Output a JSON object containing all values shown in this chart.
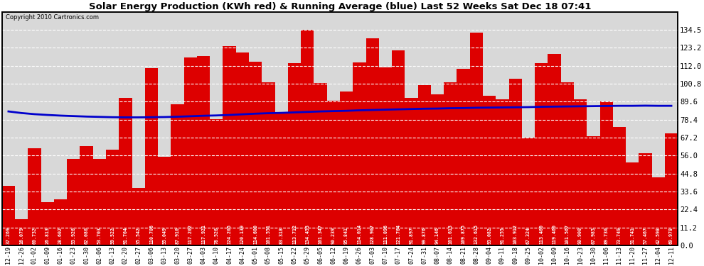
{
  "title": "Solar Energy Production (KWh red) & Running Average (blue) Last 52 Weeks Sat Dec 18 07:41",
  "copyright": "Copyright 2010 Cartronics.com",
  "bar_color": "#dd0000",
  "line_color": "#0000cc",
  "background_color": "#ffffff",
  "plot_bg_color": "#d8d8d8",
  "grid_color": "#ffffff",
  "ylim": [
    0,
    145.5
  ],
  "yticks": [
    0.0,
    11.2,
    22.4,
    33.6,
    44.8,
    56.0,
    67.2,
    78.4,
    89.6,
    100.8,
    112.0,
    123.2,
    134.5
  ],
  "categories": [
    "12-19",
    "12-26",
    "01-02",
    "01-09",
    "01-16",
    "01-23",
    "01-30",
    "02-06",
    "02-13",
    "02-20",
    "02-27",
    "03-06",
    "03-13",
    "03-20",
    "03-27",
    "04-03",
    "04-10",
    "04-17",
    "04-24",
    "05-01",
    "05-08",
    "05-15",
    "05-22",
    "05-29",
    "06-05",
    "06-12",
    "06-19",
    "06-26",
    "07-03",
    "07-10",
    "07-17",
    "07-24",
    "07-31",
    "08-07",
    "08-14",
    "08-21",
    "08-28",
    "09-04",
    "09-11",
    "09-18",
    "09-25",
    "10-02",
    "10-09",
    "10-16",
    "10-23",
    "10-30",
    "11-06",
    "11-13",
    "11-20",
    "11-27",
    "12-04",
    "12-11"
  ],
  "values": [
    37.269,
    16.079,
    60.732,
    26.813,
    28.602,
    53.926,
    62.08,
    53.703,
    59.522,
    91.764,
    35.542,
    110.706,
    55.049,
    87.91,
    117.202,
    117.921,
    78.526,
    124.205,
    120.139,
    114.6,
    101.551,
    83.318,
    113.712,
    134.453,
    101.347,
    90.239,
    95.841,
    114.014,
    128.907,
    111.096,
    121.764,
    91.897,
    99.876,
    94.146,
    101.613,
    109.875,
    132.615,
    93.082,
    91.255,
    103.912,
    67.324,
    113.46,
    119.46,
    101.567,
    90.9,
    67.985,
    89.73,
    73.749,
    51.741,
    57.467,
    42.598,
    69.978
  ],
  "running_avg": [
    83.5,
    82.5,
    81.8,
    81.3,
    80.9,
    80.6,
    80.3,
    80.1,
    79.9,
    79.8,
    79.8,
    79.9,
    80.0,
    80.2,
    80.5,
    80.8,
    81.0,
    81.3,
    81.7,
    82.1,
    82.4,
    82.6,
    82.9,
    83.2,
    83.5,
    83.7,
    83.9,
    84.2,
    84.4,
    84.6,
    84.8,
    85.0,
    85.2,
    85.3,
    85.5,
    85.6,
    85.8,
    85.9,
    86.0,
    86.1,
    86.2,
    86.4,
    86.5,
    86.6,
    86.7,
    86.8,
    86.9,
    87.0,
    87.0,
    87.1,
    87.0,
    87.0
  ]
}
